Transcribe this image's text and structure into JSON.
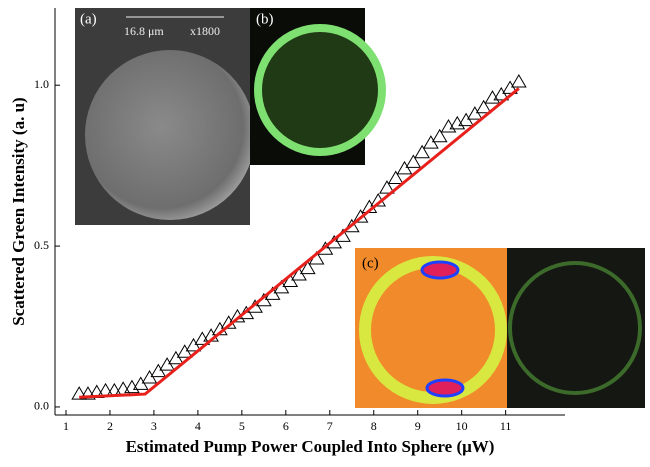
{
  "chart_data": {
    "type": "scatter",
    "xlabel": "Estimated Pump Power Coupled Into Sphere (μW)",
    "ylabel": "Scattered Green Intensity (a. u)",
    "xlim": [
      0.75,
      12.35
    ],
    "ylim": [
      -0.025,
      1.24
    ],
    "xticks": [
      1,
      2,
      3,
      4,
      5,
      6,
      7,
      8,
      9,
      10,
      11
    ],
    "yticks": [
      {
        "value": 0,
        "label": "0.0"
      },
      {
        "value": 0.5,
        "label": "0.5"
      },
      {
        "value": 1,
        "label": "1.0"
      }
    ],
    "series": [
      {
        "marker": "triangle",
        "color": "#000000",
        "x": [
          1.3,
          1.5,
          1.7,
          1.9,
          2.1,
          2.3,
          2.5,
          2.7,
          2.9,
          3.1,
          3.3,
          3.5,
          3.7,
          3.9,
          4.1,
          4.3,
          4.5,
          4.7,
          4.9,
          5.1,
          5.3,
          5.5,
          5.7,
          5.9,
          6.1,
          6.3,
          6.5,
          6.7,
          6.9,
          7.1,
          7.3,
          7.5,
          7.7,
          7.9,
          8.1,
          8.3,
          8.5,
          8.7,
          8.9,
          9.1,
          9.3,
          9.5,
          9.7,
          9.9,
          10.1,
          10.3,
          10.5,
          10.7,
          10.9,
          11.1,
          11.3
        ],
        "values": [
          0.04,
          0.04,
          0.045,
          0.05,
          0.05,
          0.055,
          0.06,
          0.07,
          0.09,
          0.11,
          0.13,
          0.15,
          0.17,
          0.19,
          0.21,
          0.22,
          0.24,
          0.26,
          0.28,
          0.29,
          0.31,
          0.33,
          0.35,
          0.37,
          0.39,
          0.41,
          0.43,
          0.46,
          0.49,
          0.51,
          0.53,
          0.56,
          0.59,
          0.62,
          0.64,
          0.68,
          0.71,
          0.74,
          0.76,
          0.79,
          0.82,
          0.84,
          0.87,
          0.88,
          0.89,
          0.91,
          0.93,
          0.96,
          0.97,
          0.99,
          1.01
        ]
      },
      {
        "marker": "line",
        "color": "#e8201c",
        "x": [
          1.3,
          2.8,
          11.3
        ],
        "values": [
          0.03,
          0.04,
          0.99
        ]
      }
    ],
    "annotations": [
      "(a)",
      "(b)",
      "(c)",
      "16.8 μm",
      "x1800"
    ]
  }
}
